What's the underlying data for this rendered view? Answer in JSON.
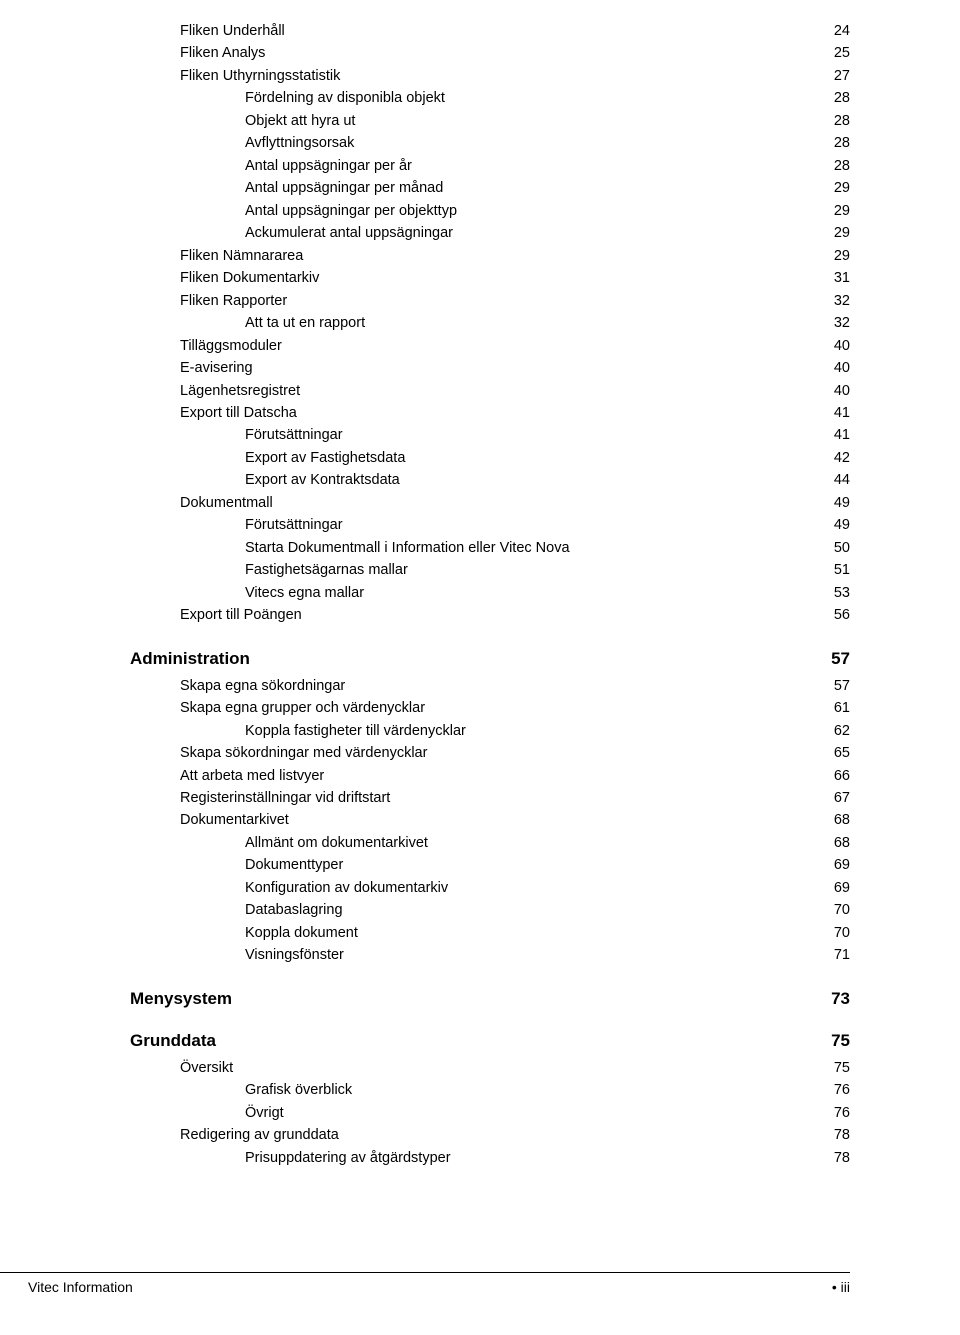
{
  "toc": {
    "block1": [
      {
        "label": "Fliken Underhåll",
        "page": "24",
        "level": 1
      },
      {
        "label": "Fliken Analys",
        "page": "25",
        "level": 1
      },
      {
        "label": "Fliken Uthyrningsstatistik",
        "page": "27",
        "level": 1
      },
      {
        "label": "Fördelning av disponibla objekt",
        "page": "28",
        "level": 2
      },
      {
        "label": "Objekt att hyra ut",
        "page": "28",
        "level": 2
      },
      {
        "label": "Avflyttningsorsak",
        "page": "28",
        "level": 2
      },
      {
        "label": "Antal uppsägningar per år",
        "page": "28",
        "level": 2
      },
      {
        "label": "Antal uppsägningar per månad",
        "page": "29",
        "level": 2
      },
      {
        "label": "Antal uppsägningar per objekttyp",
        "page": "29",
        "level": 2
      },
      {
        "label": "Ackumulerat antal uppsägningar",
        "page": "29",
        "level": 2
      },
      {
        "label": "Fliken Nämnararea",
        "page": "29",
        "level": 1
      },
      {
        "label": "Fliken Dokumentarkiv",
        "page": "31",
        "level": 1
      },
      {
        "label": "Fliken Rapporter",
        "page": "32",
        "level": 1
      },
      {
        "label": "Att ta ut en rapport",
        "page": "32",
        "level": 2
      },
      {
        "label": "Tilläggsmoduler",
        "page": "40",
        "level": 1
      },
      {
        "label": "E-avisering",
        "page": "40",
        "level": 1
      },
      {
        "label": "Lägenhetsregistret",
        "page": "40",
        "level": 1
      },
      {
        "label": "Export till Datscha",
        "page": "41",
        "level": 1
      },
      {
        "label": "Förutsättningar",
        "page": "41",
        "level": 2
      },
      {
        "label": "Export av Fastighetsdata",
        "page": "42",
        "level": 2
      },
      {
        "label": "Export av Kontraktsdata",
        "page": "44",
        "level": 2
      },
      {
        "label": "Dokumentmall",
        "page": "49",
        "level": 1
      },
      {
        "label": "Förutsättningar",
        "page": "49",
        "level": 2
      },
      {
        "label": "Starta Dokumentmall i Information eller Vitec Nova",
        "page": "50",
        "level": 2
      },
      {
        "label": "Fastighetsägarnas mallar",
        "page": "51",
        "level": 2
      },
      {
        "label": "Vitecs egna mallar",
        "page": "53",
        "level": 2
      },
      {
        "label": "Export till Poängen",
        "page": "56",
        "level": 1
      }
    ],
    "section_admin": {
      "title": "Administration",
      "page": "57"
    },
    "block2": [
      {
        "label": "Skapa egna sökordningar",
        "page": "57",
        "level": 1
      },
      {
        "label": "Skapa egna grupper och värdenycklar",
        "page": "61",
        "level": 1
      },
      {
        "label": "Koppla fastigheter till värdenycklar",
        "page": "62",
        "level": 2
      },
      {
        "label": "Skapa sökordningar med värdenycklar",
        "page": "65",
        "level": 1
      },
      {
        "label": "Att arbeta med listvyer",
        "page": "66",
        "level": 1
      },
      {
        "label": "Registerinställningar vid driftstart",
        "page": "67",
        "level": 1
      },
      {
        "label": "Dokumentarkivet",
        "page": "68",
        "level": 1
      },
      {
        "label": "Allmänt om dokumentarkivet",
        "page": "68",
        "level": 2
      },
      {
        "label": "Dokumenttyper",
        "page": "69",
        "level": 2
      },
      {
        "label": "Konfiguration av dokumentarkiv",
        "page": "69",
        "level": 2
      },
      {
        "label": "Databaslagring",
        "page": "70",
        "level": 2
      },
      {
        "label": "Koppla dokument",
        "page": "70",
        "level": 2
      },
      {
        "label": "Visningsfönster",
        "page": "71",
        "level": 2
      }
    ],
    "section_meny": {
      "title": "Menysystem",
      "page": "73"
    },
    "section_grund": {
      "title": "Grunddata",
      "page": "75"
    },
    "block3": [
      {
        "label": "Översikt",
        "page": "75",
        "level": 1
      },
      {
        "label": "Grafisk överblick",
        "page": "76",
        "level": 2
      },
      {
        "label": "Övrigt",
        "page": "76",
        "level": 2
      },
      {
        "label": "Redigering av grunddata",
        "page": "78",
        "level": 1
      },
      {
        "label": "Prisuppdatering av åtgärdstyper",
        "page": "78",
        "level": 2
      }
    ]
  },
  "footer": {
    "left": "Vitec Information",
    "right_bullet": "•",
    "right_page": "iii"
  }
}
